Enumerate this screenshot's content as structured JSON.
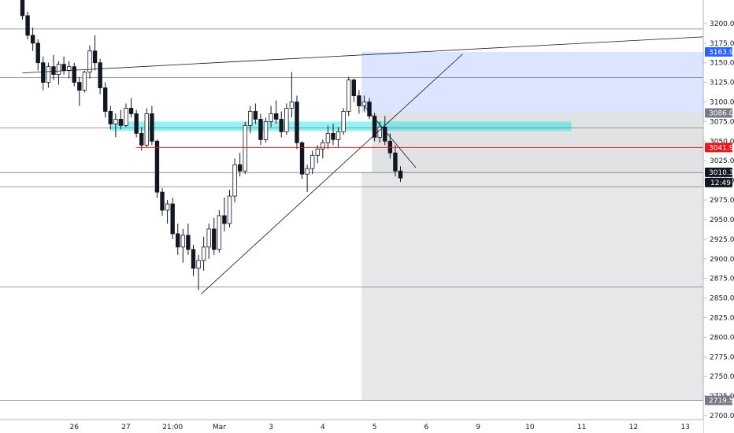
{
  "chart_data": {
    "type": "candlestick",
    "y_axis": {
      "min": 2695,
      "max": 3230,
      "ticks": [
        2700,
        2725,
        2750,
        2775,
        2800,
        2825,
        2850,
        2875,
        2900,
        2925,
        2950,
        2975,
        3000,
        3025,
        3050,
        3075,
        3100,
        3125,
        3150,
        3175,
        3200
      ],
      "tick_labels": [
        "2700.0",
        "2725.0",
        "2750.0",
        "2775.0",
        "2800.0",
        "2825.0",
        "2850.0",
        "2875.0",
        "2900.0",
        "2925.0",
        "2950.0",
        "2975.0",
        "3000.0",
        "3025.0",
        "3050.0",
        "3075.0",
        "3100.0",
        "3125.0",
        "3150.0",
        "3175.0",
        "3200.0"
      ]
    },
    "x_axis": {
      "tick_labels": [
        "26",
        "27",
        "21:00",
        "Mar",
        "3",
        "4",
        "5",
        "6",
        "9",
        "10",
        "11",
        "12",
        "13"
      ],
      "tick_index": [
        10,
        20,
        29,
        38,
        48,
        58,
        68,
        78,
        88,
        98,
        108,
        118,
        128
      ]
    },
    "horizontal_lines": [
      3193,
      3131,
      3067,
      3010,
      2992,
      2864,
      2719.5
    ],
    "trendlines": [
      {
        "from": [
          0,
          3137
        ],
        "to": [
          134,
          3183
        ]
      },
      {
        "from": [
          34.5,
          2855
        ],
        "to": [
          85,
          3161
        ]
      },
      {
        "from": [
          66,
          3095
        ],
        "to": [
          76,
          3016
        ]
      }
    ],
    "red_level": {
      "value": 3041.9,
      "from_index": 22,
      "to_index": 134
    },
    "zones": {
      "cyan": {
        "from_index": 17,
        "to_index": 106,
        "top": 3075,
        "bottom": 3063
      },
      "target": {
        "from_index": 65.5,
        "to_index": 134,
        "top": 3163.9,
        "bottom": 3086.0
      },
      "entry_dark": {
        "from_index": 67.5,
        "to_index": 134,
        "top": 3086.0,
        "bottom": 3010.3
      },
      "light_gray": {
        "from_index": 65.5,
        "to_index": 134,
        "top": 3010.3,
        "bottom": 2719.5
      }
    },
    "price_labels": [
      {
        "value": 3163.9,
        "text": "3163.9",
        "color": "#2962ff"
      },
      {
        "value": 3086.0,
        "text": "3086.0",
        "color": "#787b86"
      },
      {
        "value": 3041.9,
        "text": "3041.9",
        "color": "#e8181d"
      },
      {
        "value": 3010.3,
        "text": "3010.3",
        "color": "#131722"
      },
      {
        "value": 2719.5,
        "text": "2719.5",
        "color": "#787b86"
      }
    ],
    "countdown": "12:49",
    "candles": [
      [
        3230,
        3240,
        3205,
        3210
      ],
      [
        3210,
        3215,
        3180,
        3185
      ],
      [
        3185,
        3195,
        3165,
        3175
      ],
      [
        3175,
        3180,
        3140,
        3150
      ],
      [
        3150,
        3158,
        3115,
        3125
      ],
      [
        3125,
        3150,
        3118,
        3145
      ],
      [
        3145,
        3160,
        3128,
        3135
      ],
      [
        3135,
        3152,
        3122,
        3148
      ],
      [
        3148,
        3158,
        3135,
        3140
      ],
      [
        3140,
        3152,
        3130,
        3145
      ],
      [
        3145,
        3150,
        3120,
        3125
      ],
      [
        3125,
        3132,
        3095,
        3115
      ],
      [
        3115,
        3140,
        3112,
        3138
      ],
      [
        3138,
        3172,
        3130,
        3165
      ],
      [
        3165,
        3185,
        3140,
        3150
      ],
      [
        3150,
        3155,
        3110,
        3118
      ],
      [
        3118,
        3125,
        3080,
        3088
      ],
      [
        3088,
        3095,
        3065,
        3072
      ],
      [
        3072,
        3085,
        3055,
        3078
      ],
      [
        3078,
        3090,
        3065,
        3070
      ],
      [
        3070,
        3098,
        3068,
        3092
      ],
      [
        3092,
        3105,
        3080,
        3085
      ],
      [
        3085,
        3090,
        3055,
        3060
      ],
      [
        3060,
        3068,
        3038,
        3045
      ],
      [
        3045,
        3092,
        3042,
        3085
      ],
      [
        3085,
        3095,
        3045,
        3050
      ],
      [
        3050,
        3052,
        2978,
        2985
      ],
      [
        2985,
        2990,
        2955,
        2962
      ],
      [
        2962,
        2975,
        2945,
        2970
      ],
      [
        2970,
        2978,
        2925,
        2932
      ],
      [
        2932,
        2945,
        2905,
        2915
      ],
      [
        2915,
        2938,
        2895,
        2930
      ],
      [
        2930,
        2945,
        2905,
        2912
      ],
      [
        2912,
        2918,
        2878,
        2888
      ],
      [
        2888,
        2905,
        2860,
        2898
      ],
      [
        2898,
        2928,
        2885,
        2915
      ],
      [
        2915,
        2945,
        2900,
        2938
      ],
      [
        2938,
        2952,
        2905,
        2912
      ],
      [
        2912,
        2962,
        2908,
        2955
      ],
      [
        2955,
        2978,
        2935,
        2945
      ],
      [
        2945,
        2988,
        2940,
        2980
      ],
      [
        2980,
        3028,
        2972,
        3020
      ],
      [
        3020,
        3035,
        3005,
        3012
      ],
      [
        3012,
        3075,
        3008,
        3070
      ],
      [
        3070,
        3095,
        3060,
        3088
      ],
      [
        3088,
        3098,
        3072,
        3078
      ],
      [
        3078,
        3085,
        3045,
        3052
      ],
      [
        3052,
        3080,
        3048,
        3075
      ],
      [
        3075,
        3095,
        3068,
        3085
      ],
      [
        3085,
        3102,
        3072,
        3078
      ],
      [
        3078,
        3088,
        3055,
        3062
      ],
      [
        3062,
        3098,
        3058,
        3092
      ],
      [
        3092,
        3138,
        3080,
        3100
      ],
      [
        3100,
        3108,
        3040,
        3048
      ],
      [
        3048,
        3050,
        3002,
        3008
      ],
      [
        3008,
        3020,
        2985,
        3015
      ],
      [
        3015,
        3038,
        3008,
        3032
      ],
      [
        3032,
        3045,
        3022,
        3040
      ],
      [
        3040,
        3052,
        3028,
        3048
      ],
      [
        3048,
        3070,
        3040,
        3060
      ],
      [
        3060,
        3072,
        3045,
        3052
      ],
      [
        3052,
        3068,
        3042,
        3062
      ],
      [
        3062,
        3092,
        3058,
        3088
      ],
      [
        3088,
        3132,
        3082,
        3128
      ],
      [
        3128,
        3130,
        3100,
        3108
      ],
      [
        3108,
        3115,
        3085,
        3095
      ],
      [
        3095,
        3108,
        3088,
        3100
      ],
      [
        3100,
        3105,
        3078,
        3082
      ],
      [
        3082,
        3086,
        3050,
        3055
      ],
      [
        3055,
        3075,
        3048,
        3068
      ],
      [
        3068,
        3082,
        3045,
        3050
      ],
      [
        3050,
        3060,
        3028,
        3035
      ],
      [
        3035,
        3045,
        3005,
        3012
      ],
      [
        3012,
        3018,
        2998,
        3003
      ]
    ]
  }
}
